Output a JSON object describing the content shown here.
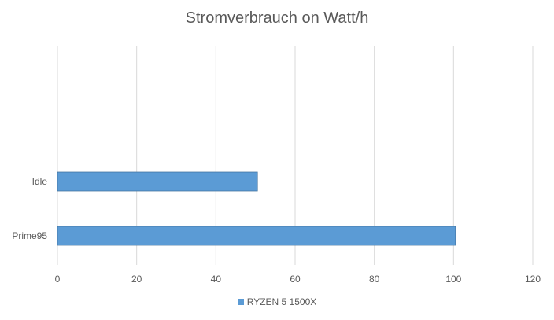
{
  "chart_data": {
    "type": "bar",
    "orientation": "horizontal",
    "title": "Stromverbrauch on Watt/h",
    "categories": [
      "Idle",
      "Prime95"
    ],
    "series": [
      {
        "name": "RYZEN 5 1500X",
        "values": [
          50.5,
          100.5
        ]
      }
    ],
    "xlim": [
      0,
      120
    ],
    "xticks": [
      "0",
      "20",
      "40",
      "60",
      "80",
      "100",
      "120"
    ],
    "grid": true,
    "legend": "bottom"
  },
  "colors": {
    "bar": "#5B9BD5",
    "bar_border": "#41719C",
    "grid": "#D9D9D9",
    "text": "#595959"
  }
}
